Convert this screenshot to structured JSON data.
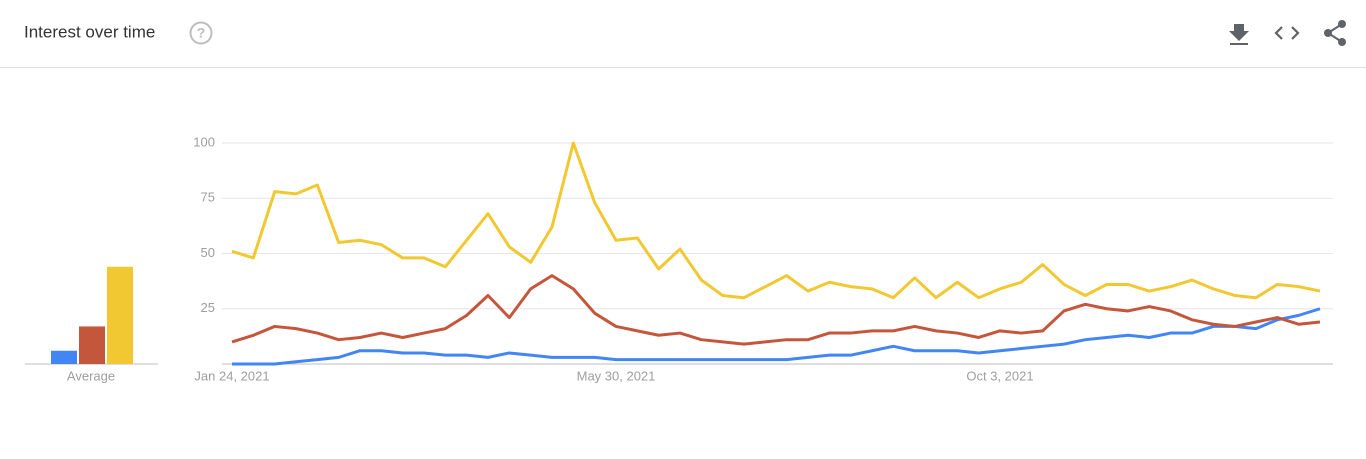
{
  "chart_data": {
    "type": "line",
    "title": "Interest over time",
    "categories": [
      "Jan 24, 2021",
      null,
      null,
      null,
      null,
      null,
      null,
      null,
      null,
      null,
      null,
      null,
      null,
      null,
      null,
      null,
      null,
      null,
      "May 30, 2021",
      null,
      null,
      null,
      null,
      null,
      null,
      null,
      null,
      null,
      null,
      null,
      null,
      null,
      null,
      null,
      null,
      null,
      "Oct 3, 2021",
      null,
      null,
      null,
      null,
      null,
      null,
      null,
      null,
      null,
      null,
      null,
      null,
      null,
      null,
      null
    ],
    "series": [
      {
        "color": "#4285f4",
        "values": [
          0,
          0,
          0,
          1,
          2,
          3,
          6,
          6,
          5,
          5,
          4,
          4,
          3,
          5,
          4,
          3,
          3,
          3,
          2,
          2,
          2,
          2,
          2,
          2,
          2,
          2,
          2,
          3,
          4,
          4,
          6,
          8,
          6,
          6,
          6,
          5,
          6,
          7,
          8,
          9,
          11,
          12,
          13,
          12,
          14,
          14,
          17,
          17,
          16,
          20,
          22,
          25
        ]
      },
      {
        "color": "#c4563b",
        "values": [
          10,
          13,
          17,
          16,
          14,
          11,
          12,
          14,
          12,
          14,
          16,
          22,
          31,
          21,
          34,
          40,
          34,
          23,
          17,
          15,
          13,
          14,
          11,
          10,
          9,
          10,
          11,
          11,
          14,
          14,
          15,
          15,
          17,
          15,
          14,
          12,
          15,
          14,
          15,
          24,
          27,
          25,
          24,
          26,
          24,
          20,
          18,
          17,
          19,
          21,
          18,
          19
        ]
      },
      {
        "color": "#f2c832",
        "values": [
          51,
          48,
          78,
          77,
          81,
          55,
          56,
          54,
          48,
          48,
          44,
          56,
          68,
          53,
          46,
          62,
          100,
          73,
          56,
          57,
          43,
          52,
          38,
          31,
          30,
          35,
          40,
          33,
          37,
          35,
          34,
          30,
          39,
          30,
          37,
          30,
          34,
          37,
          45,
          36,
          31,
          36,
          36,
          33,
          35,
          38,
          34,
          31,
          30,
          36,
          35,
          33
        ]
      }
    ],
    "average": {
      "label": "Average",
      "values": [
        6,
        17,
        44
      ]
    },
    "ylim": [
      0,
      100
    ],
    "yticks": [
      25,
      50,
      75,
      100
    ],
    "grid": true
  }
}
